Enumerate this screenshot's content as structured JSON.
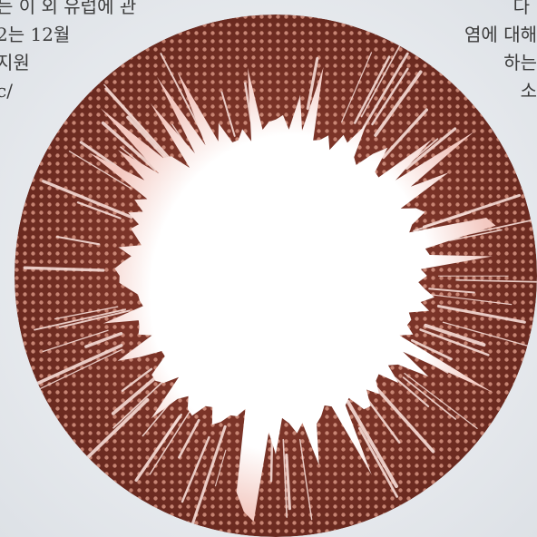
{
  "background_text": {
    "left_lines": [
      "는 이 외 유럽에 관",
      "2는 12월",
      "지원",
      "c/"
    ],
    "right_lines": [
      "다",
      "염에 대해",
      "하는",
      "소"
    ]
  },
  "lens": {
    "ring_color": "#7b3428",
    "dot_color": "#d69482",
    "center_color": "#ffffff",
    "edge_tint": "#f3c9c1"
  }
}
